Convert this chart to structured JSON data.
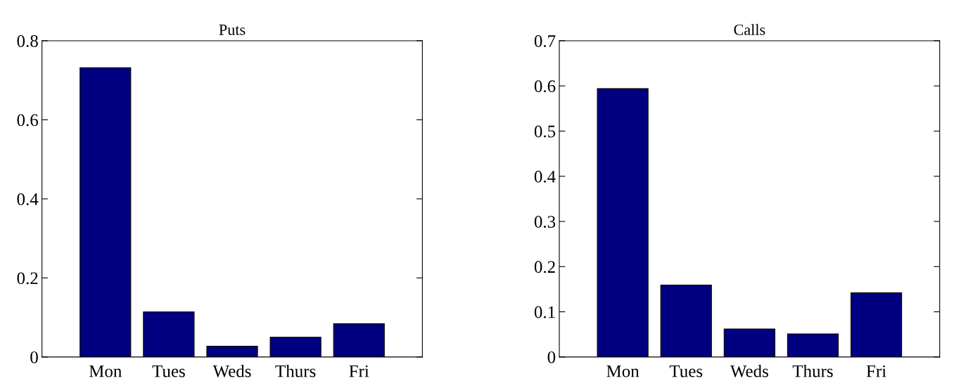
{
  "chart_data": [
    {
      "type": "bar",
      "title": "Puts",
      "categories": [
        "Mon",
        "Tues",
        "Weds",
        "Thurs",
        "Fri"
      ],
      "values": [
        0.732,
        0.114,
        0.027,
        0.05,
        0.084
      ],
      "color": "#000080",
      "ylim": [
        0,
        0.8
      ],
      "yticks": [
        0,
        0.2,
        0.4,
        0.6,
        0.8
      ],
      "grid": false,
      "legend": false
    },
    {
      "type": "bar",
      "title": "Calls",
      "categories": [
        "Mon",
        "Tues",
        "Weds",
        "Thurs",
        "Fri"
      ],
      "values": [
        0.594,
        0.159,
        0.062,
        0.051,
        0.142
      ],
      "color": "#000080",
      "ylim": [
        0,
        0.7
      ],
      "yticks": [
        0,
        0.1,
        0.2,
        0.3,
        0.4,
        0.5,
        0.6,
        0.7
      ],
      "grid": false,
      "legend": false
    }
  ]
}
